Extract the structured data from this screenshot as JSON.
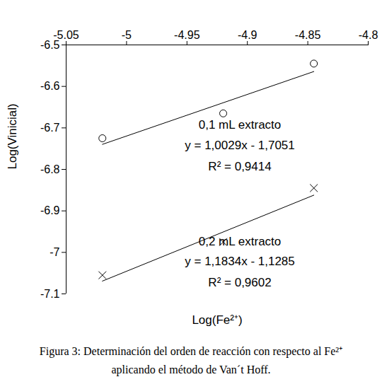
{
  "chart_data": {
    "type": "scatter",
    "x_label": "Log(Fe²⁺)",
    "y_label": "Log(Vinicial)",
    "caption": [
      "Figura 3: Determinación del orden de reacción con respecto al Fe²⁺",
      "aplicando el método de Van´t Hoff."
    ],
    "xlim": [
      -5.05,
      -4.8
    ],
    "xticks": [
      -5.05,
      -5,
      -4.95,
      -4.9,
      -4.85,
      -4.8
    ],
    "ylim": [
      -7.1,
      -6.5
    ],
    "yticks": [
      -6.5,
      -6.6,
      -6.7,
      -6.8,
      -6.9,
      -7,
      -7.1
    ],
    "grid": false,
    "series": [
      {
        "name": "0,1 mL extracto",
        "color": "#000000",
        "marker": "circle",
        "x": [
          -5.02,
          -4.92,
          -4.845
        ],
        "values": [
          -6.725,
          -6.665,
          -6.545
        ],
        "trendline": {
          "slope": 1.0029,
          "intercept": -1.7051,
          "label": "y = 1,0029x - 1,7051",
          "r2_label": "R² = 0,9414"
        }
      },
      {
        "name": "0,2 mL extracto",
        "color": "#000000",
        "marker": "x",
        "x": [
          -5.02,
          -4.92,
          -4.845
        ],
        "values": [
          -7.055,
          -6.975,
          -6.845
        ],
        "trendline": {
          "slope": 1.1834,
          "intercept": -1.1285,
          "label": "y = 1,1834x - 1,1285",
          "r2_label": "R² = 0,9602"
        }
      }
    ]
  }
}
